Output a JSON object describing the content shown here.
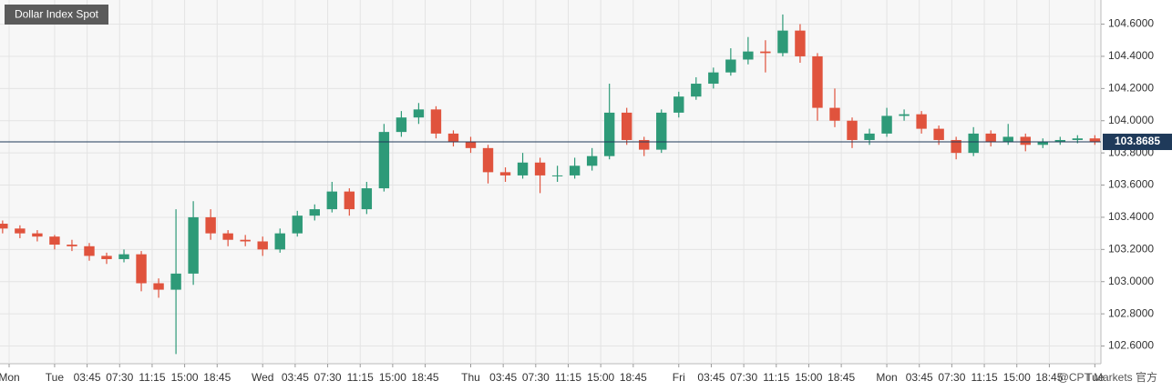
{
  "chart_data": {
    "type": "candlestick",
    "title": "Dollar Index Spot",
    "watermark": "@CPT Markets 官方",
    "up_color": "#2e9a78",
    "down_color": "#e0533d",
    "grid": true,
    "last_price": 103.8685,
    "last_price_color": "#1f3a5a",
    "xlim": [
      -6.3,
      120.7
    ],
    "xticks": [
      {
        "value": -5.25,
        "label": "Mon"
      },
      {
        "value": 0,
        "label": "Tue"
      },
      {
        "value": 3.75,
        "label": "03:45"
      },
      {
        "value": 7.5,
        "label": "07:30"
      },
      {
        "value": 11.25,
        "label": "11:15"
      },
      {
        "value": 15,
        "label": "15:00"
      },
      {
        "value": 18.75,
        "label": "18:45"
      },
      {
        "value": 24,
        "label": "Wed"
      },
      {
        "value": 27.75,
        "label": "03:45"
      },
      {
        "value": 31.5,
        "label": "07:30"
      },
      {
        "value": 35.25,
        "label": "11:15"
      },
      {
        "value": 39,
        "label": "15:00"
      },
      {
        "value": 42.75,
        "label": "18:45"
      },
      {
        "value": 48,
        "label": "Thu"
      },
      {
        "value": 51.75,
        "label": "03:45"
      },
      {
        "value": 55.5,
        "label": "07:30"
      },
      {
        "value": 59.25,
        "label": "11:15"
      },
      {
        "value": 63,
        "label": "15:00"
      },
      {
        "value": 66.75,
        "label": "18:45"
      },
      {
        "value": 72,
        "label": "Fri"
      },
      {
        "value": 75.75,
        "label": "03:45"
      },
      {
        "value": 79.5,
        "label": "07:30"
      },
      {
        "value": 83.25,
        "label": "11:15"
      },
      {
        "value": 87,
        "label": "15:00"
      },
      {
        "value": 90.75,
        "label": "18:45"
      },
      {
        "value": 96,
        "label": "Mon"
      },
      {
        "value": 99.75,
        "label": "03:45"
      },
      {
        "value": 103.5,
        "label": "07:30"
      },
      {
        "value": 107.25,
        "label": "11:15"
      },
      {
        "value": 111,
        "label": "15:00"
      },
      {
        "value": 114.75,
        "label": "18:45"
      },
      {
        "value": 120,
        "label": "Tue"
      }
    ],
    "ylim": [
      102.49,
      104.75
    ],
    "yticks": [
      {
        "value": 102.6,
        "label": "102.6000"
      },
      {
        "value": 102.8,
        "label": "102.8000"
      },
      {
        "value": 103.0,
        "label": "103.0000"
      },
      {
        "value": 103.2,
        "label": "103.2000"
      },
      {
        "value": 103.4,
        "label": "103.4000"
      },
      {
        "value": 103.6,
        "label": "103.6000"
      },
      {
        "value": 103.8,
        "label": "103.8000"
      },
      {
        "value": 104.0,
        "label": "104.0000"
      },
      {
        "value": 104.2,
        "label": "104.2000"
      },
      {
        "value": 104.4,
        "label": "104.4000"
      },
      {
        "value": 104.6,
        "label": "104.6000"
      }
    ],
    "x": [
      -6,
      -4,
      -2,
      0,
      2,
      4,
      6,
      8,
      10,
      12,
      14,
      16,
      18,
      20,
      22,
      24,
      26,
      28,
      30,
      32,
      34,
      36,
      38,
      40,
      42,
      44,
      46,
      48,
      50,
      52,
      54,
      56,
      58,
      60,
      62,
      64,
      66,
      68,
      70,
      72,
      74,
      76,
      78,
      80,
      82,
      84,
      86,
      88,
      90,
      92,
      94,
      96,
      98,
      100,
      102,
      104,
      106,
      108,
      110,
      112,
      114,
      116,
      118,
      120
    ],
    "open": [
      103.36,
      103.33,
      103.3,
      103.28,
      103.23,
      103.22,
      103.16,
      103.14,
      103.17,
      102.99,
      102.95,
      103.05,
      103.4,
      103.3,
      103.26,
      103.25,
      103.2,
      103.3,
      103.41,
      103.45,
      103.56,
      103.45,
      103.58,
      103.93,
      104.02,
      104.07,
      103.92,
      103.87,
      103.83,
      103.68,
      103.66,
      103.74,
      103.66,
      103.66,
      103.72,
      103.78,
      104.05,
      103.88,
      103.82,
      104.05,
      104.15,
      104.23,
      104.3,
      104.38,
      104.43,
      104.42,
      104.56,
      104.4,
      104.08,
      104.0,
      103.88,
      103.92,
      104.03,
      104.04,
      103.95,
      103.88,
      103.8,
      103.92,
      103.87,
      103.9,
      103.85,
      103.87,
      103.88,
      103.89
    ],
    "high": [
      103.38,
      103.35,
      103.32,
      103.29,
      103.26,
      103.24,
      103.18,
      103.2,
      103.19,
      103.02,
      103.45,
      103.5,
      103.45,
      103.32,
      103.29,
      103.28,
      103.33,
      103.44,
      103.48,
      103.62,
      103.58,
      103.62,
      103.98,
      104.06,
      104.11,
      104.09,
      103.94,
      103.9,
      103.85,
      103.71,
      103.8,
      103.77,
      103.72,
      103.77,
      103.83,
      104.23,
      104.08,
      103.9,
      104.07,
      104.18,
      104.27,
      104.33,
      104.45,
      104.52,
      104.5,
      104.66,
      104.6,
      104.42,
      104.2,
      104.02,
      103.95,
      104.08,
      104.07,
      104.06,
      103.97,
      103.9,
      103.96,
      103.94,
      103.98,
      103.92,
      103.89,
      103.9,
      103.91,
      103.91
    ],
    "low": [
      103.3,
      103.27,
      103.25,
      103.2,
      103.19,
      103.13,
      103.11,
      103.12,
      102.94,
      102.9,
      102.55,
      102.98,
      103.26,
      103.22,
      103.22,
      103.16,
      103.18,
      103.28,
      103.38,
      103.43,
      103.41,
      103.42,
      103.56,
      103.9,
      103.98,
      103.89,
      103.84,
      103.8,
      103.61,
      103.62,
      103.64,
      103.55,
      103.62,
      103.64,
      103.69,
      103.76,
      103.85,
      103.78,
      103.8,
      104.02,
      104.13,
      104.2,
      104.28,
      104.35,
      104.3,
      104.4,
      104.36,
      104.0,
      103.96,
      103.83,
      103.85,
      103.9,
      104.0,
      103.92,
      103.85,
      103.76,
      103.78,
      103.84,
      103.85,
      103.81,
      103.83,
      103.85,
      103.86,
      103.85
    ],
    "close": [
      103.33,
      103.3,
      103.28,
      103.23,
      103.22,
      103.16,
      103.14,
      103.17,
      102.99,
      102.95,
      103.05,
      103.4,
      103.3,
      103.26,
      103.25,
      103.2,
      103.3,
      103.41,
      103.45,
      103.56,
      103.45,
      103.58,
      103.93,
      104.02,
      104.07,
      103.92,
      103.87,
      103.83,
      103.68,
      103.66,
      103.74,
      103.66,
      103.66,
      103.72,
      103.78,
      104.05,
      103.88,
      103.82,
      104.05,
      104.15,
      104.23,
      104.3,
      104.38,
      104.43,
      104.42,
      104.56,
      104.4,
      104.08,
      104.0,
      103.88,
      103.92,
      104.03,
      104.04,
      103.95,
      103.88,
      103.8,
      103.92,
      103.87,
      103.9,
      103.85,
      103.87,
      103.88,
      103.89,
      103.87
    ]
  }
}
